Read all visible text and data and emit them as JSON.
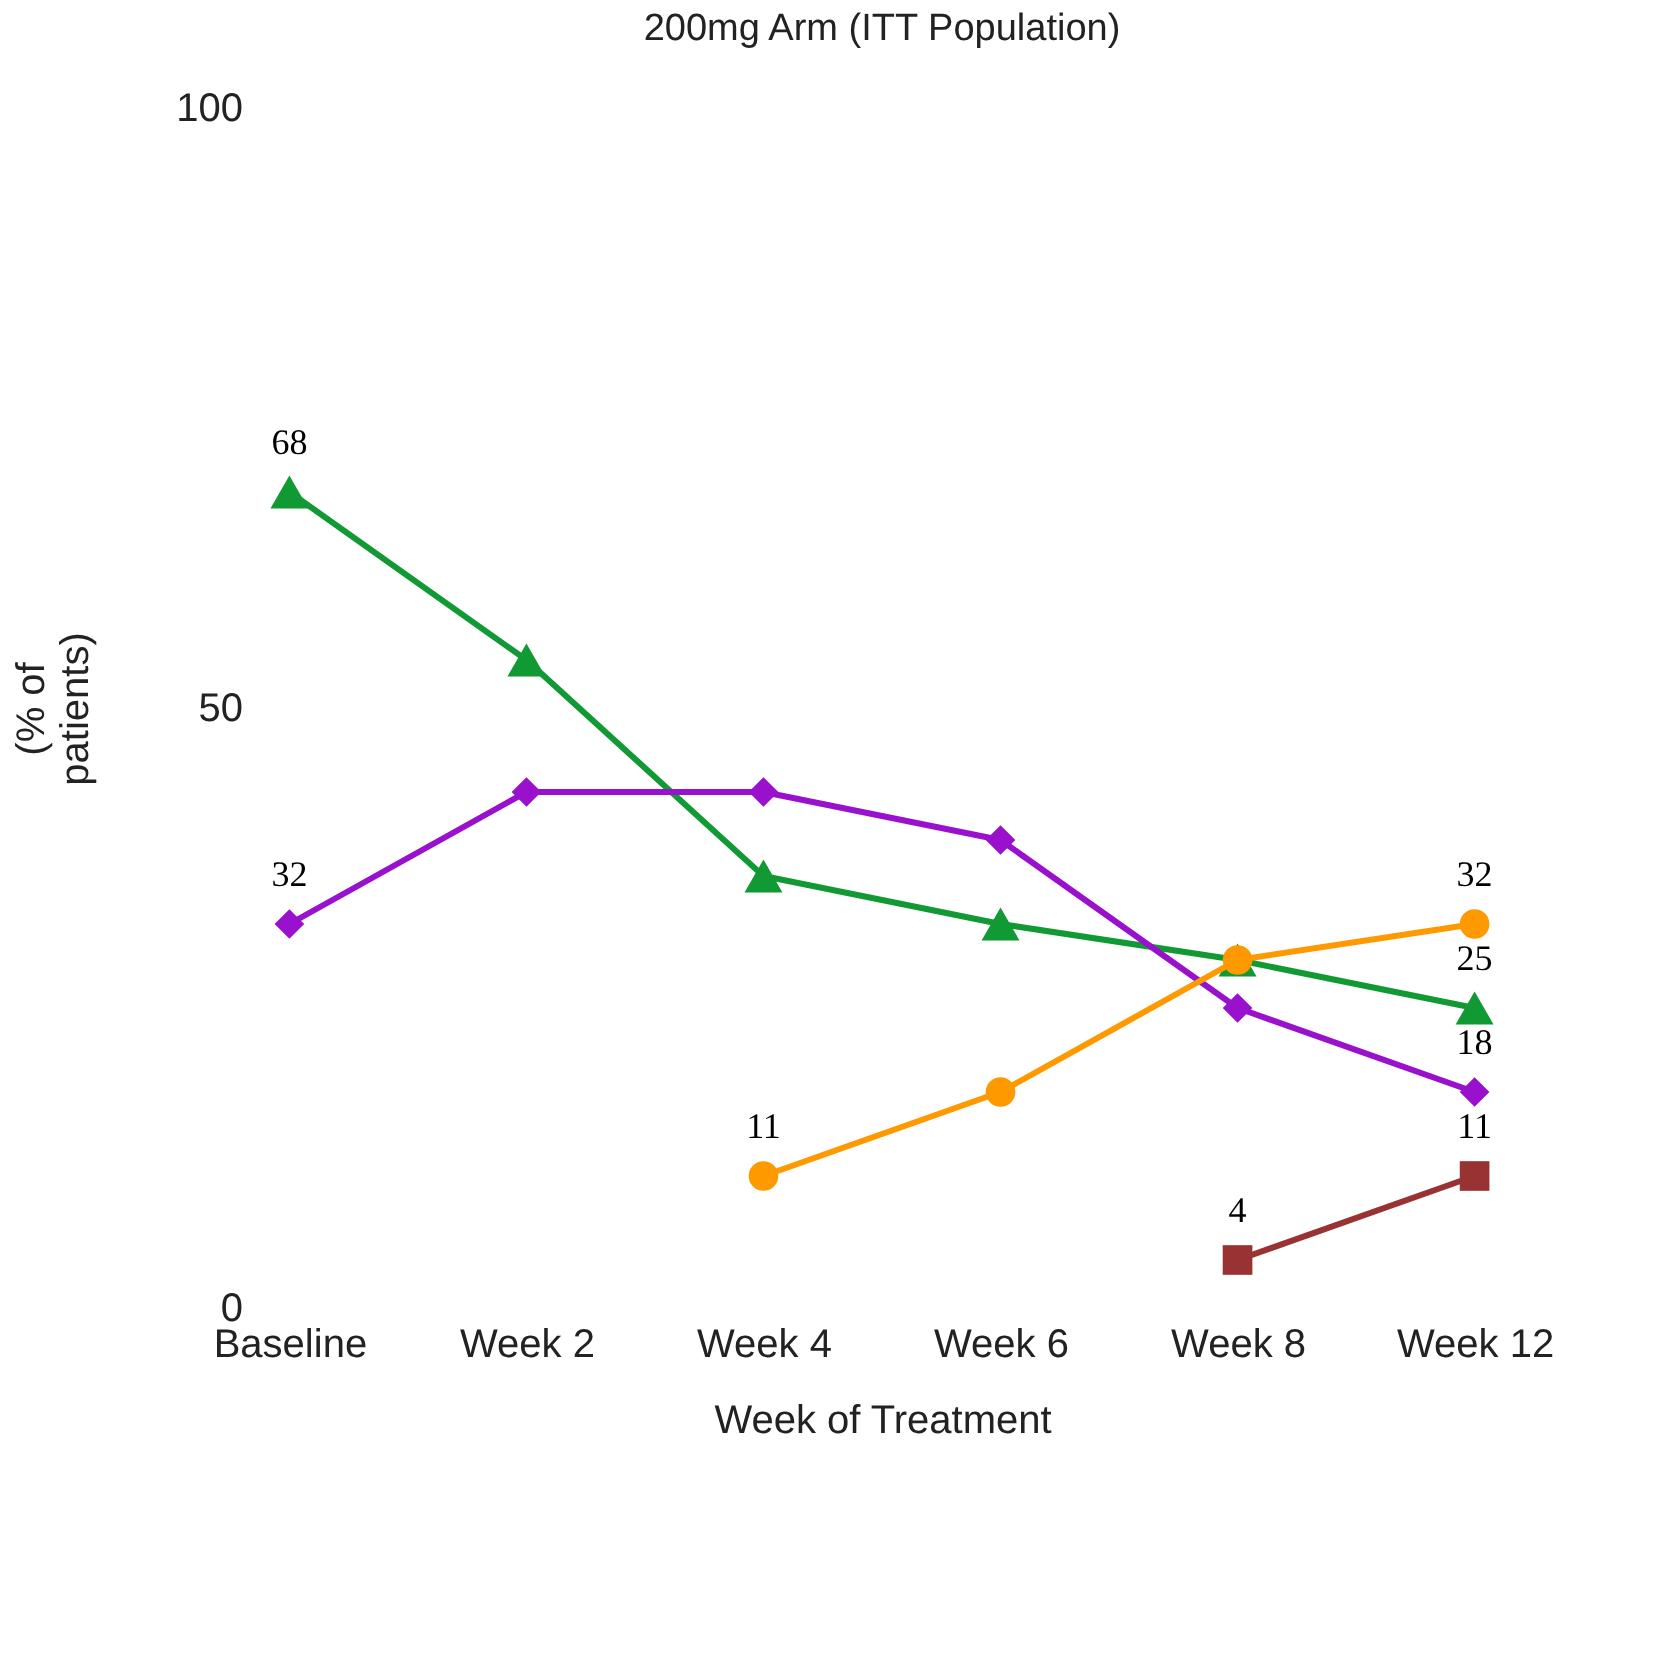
{
  "chart_data": {
    "type": "line",
    "title": "200mg Arm (ITT Population)",
    "xlabel": "Week of Treatment",
    "ylabel": "(% of patients)",
    "categories": [
      "Baseline",
      "Week 2",
      "Week 4",
      "Week 6",
      "Week 8",
      "Week 12"
    ],
    "ylim": [
      0,
      100
    ],
    "yticks": [
      0,
      50,
      100
    ],
    "grid": false,
    "line_style": "solid",
    "series": [
      {
        "color": "#119933",
        "marker": "triangle",
        "values": [
          68,
          54,
          36,
          32,
          29,
          25
        ],
        "value_labels": [
          "68",
          null,
          null,
          null,
          null,
          "25"
        ]
      },
      {
        "color": "#9911cc",
        "marker": "diamond",
        "values": [
          32,
          43,
          43,
          39,
          25,
          18
        ],
        "value_labels": [
          "32",
          null,
          null,
          null,
          null,
          "18"
        ]
      },
      {
        "color": "#ff9900",
        "marker": "circle",
        "values": [
          null,
          null,
          11,
          18,
          29,
          32
        ],
        "value_labels": [
          null,
          null,
          "11",
          null,
          null,
          "32"
        ]
      },
      {
        "color": "#993333",
        "marker": "square",
        "values": [
          null,
          null,
          null,
          null,
          4,
          11
        ],
        "value_labels": [
          null,
          null,
          null,
          null,
          "4",
          "11"
        ]
      }
    ]
  }
}
